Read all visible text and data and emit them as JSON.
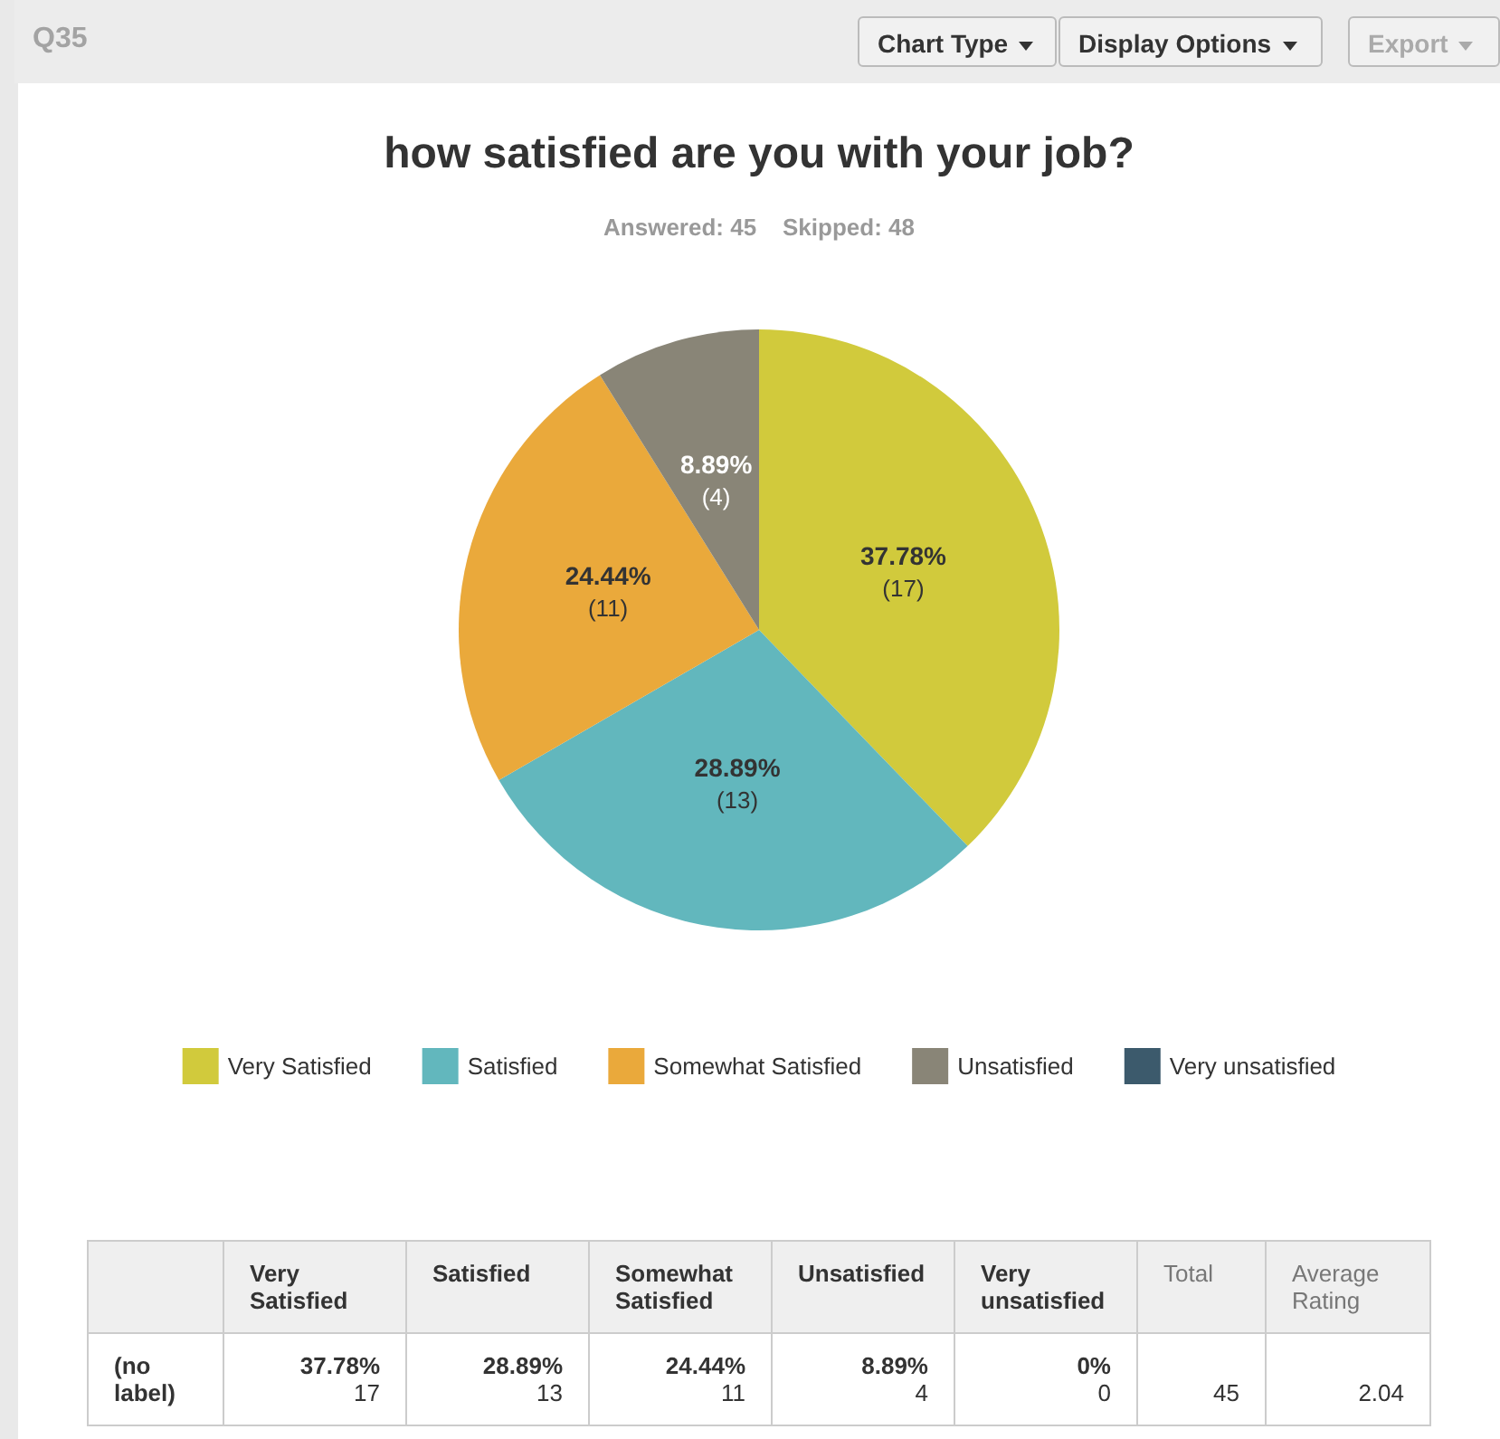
{
  "chart_data": {
    "type": "pie",
    "title": "how satisfied are you with your job?",
    "subtitle": "Answered: 45    Skipped: 48",
    "categories": [
      "Very Satisfied",
      "Satisfied",
      "Somewhat Satisfied",
      "Unsatisfied",
      "Very unsatisfied"
    ],
    "values": [
      37.78,
      28.89,
      24.44,
      8.89,
      0
    ],
    "value_labels": [
      "37.78%\n(17)",
      "28.89%\n(13)",
      "24.44%\n(11)",
      "8.89%\n(4)",
      null
    ],
    "colors": [
      "#d1ca3c",
      "#62b7bd",
      "#eaa93b",
      "#898577",
      "#3c5a6c"
    ],
    "legend": "bottom",
    "annotations": [
      "Q35",
      "Chart Type",
      "Display Options",
      "Export",
      "(no label)",
      "Total",
      "Average Rating",
      "45",
      "2.04",
      "Very Satisfied",
      "Satisfied",
      "Somewhat Satisfied",
      "Unsatisfied",
      "Very unsatisfied",
      "37.78%",
      "28.89%",
      "24.44%",
      "8.89%",
      "0%",
      "17",
      "13",
      "11",
      "4",
      "0"
    ]
  }
}
